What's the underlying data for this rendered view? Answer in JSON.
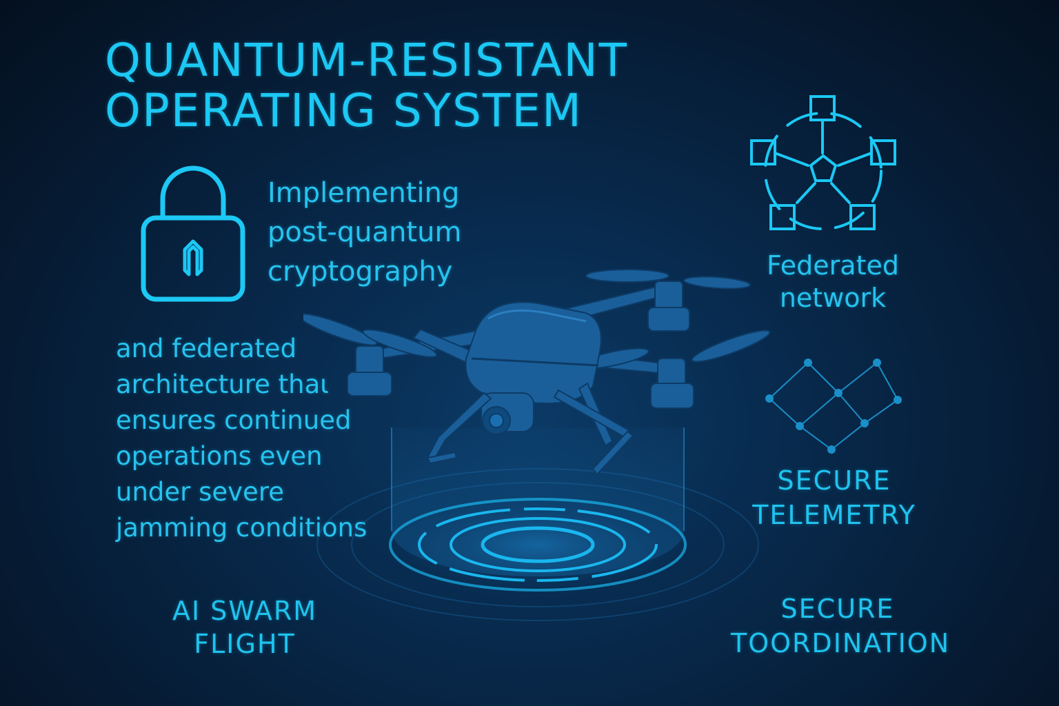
{
  "title": {
    "line1": "QUANTUM-RESISTANT",
    "line2": "OPERATING SYSTEM"
  },
  "crypto": {
    "line1": "Implementing",
    "line2": "post-quantum",
    "line3": "cryptography"
  },
  "architecture": {
    "line1": "and federated",
    "line2": "architecture thaι",
    "line3": "ensures continued",
    "line4": "operations even",
    "line5": "under severe",
    "line6": "jamming conditions"
  },
  "swarm": {
    "line1": "AI SWARM",
    "line2": "FLIGHT"
  },
  "federated_network": {
    "line1": "Federated",
    "line2": "network"
  },
  "telemetry": {
    "line1": "SECURE",
    "line2": "TELEMETRY"
  },
  "coordination": {
    "line1": "SECURE",
    "line2": "TOORDINATION"
  },
  "icons": {
    "lock": "lock-icon",
    "network": "federated-network-icon",
    "telemetry": "telemetry-graph-icon",
    "drone": "drone-icon"
  },
  "colors": {
    "accent": "#1cc8f4",
    "background": "#061b33",
    "drone": "#1a5f9a"
  }
}
